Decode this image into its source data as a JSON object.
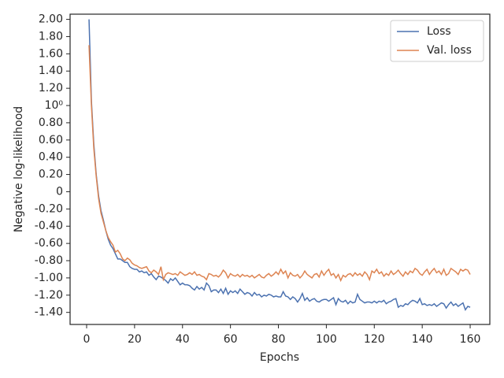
{
  "chart_data": {
    "type": "line",
    "xlabel": "Epochs",
    "ylabel": "Negative log-likelihood",
    "x": [
      1,
      2,
      3,
      4,
      5,
      6,
      7,
      8,
      9,
      10,
      11,
      12,
      13,
      14,
      15,
      16,
      17,
      18,
      19,
      20,
      21,
      22,
      23,
      24,
      25,
      26,
      27,
      28,
      29,
      30,
      31,
      32,
      33,
      34,
      35,
      36,
      37,
      38,
      39,
      40,
      41,
      42,
      43,
      44,
      45,
      46,
      47,
      48,
      49,
      50,
      51,
      52,
      53,
      54,
      55,
      56,
      57,
      58,
      59,
      60,
      61,
      62,
      63,
      64,
      65,
      66,
      67,
      68,
      69,
      70,
      71,
      72,
      73,
      74,
      75,
      76,
      77,
      78,
      79,
      80,
      81,
      82,
      83,
      84,
      85,
      86,
      87,
      88,
      89,
      90,
      91,
      92,
      93,
      94,
      95,
      96,
      97,
      98,
      99,
      100,
      101,
      102,
      103,
      104,
      105,
      106,
      107,
      108,
      109,
      110,
      111,
      112,
      113,
      114,
      115,
      116,
      117,
      118,
      119,
      120,
      121,
      122,
      123,
      124,
      125,
      126,
      127,
      128,
      129,
      130,
      131,
      132,
      133,
      134,
      135,
      136,
      137,
      138,
      139,
      140,
      141,
      142,
      143,
      144,
      145,
      146,
      147,
      148,
      149,
      150,
      151,
      152,
      153,
      154,
      155,
      156,
      157,
      158,
      159,
      160
    ],
    "series": [
      {
        "name": "Loss",
        "color": "#4c72b0",
        "values": [
          2.0,
          1.05,
          0.55,
          0.2,
          -0.05,
          -0.22,
          -0.33,
          -0.45,
          -0.55,
          -0.62,
          -0.66,
          -0.72,
          -0.78,
          -0.78,
          -0.8,
          -0.82,
          -0.82,
          -0.87,
          -0.89,
          -0.9,
          -0.9,
          -0.93,
          -0.92,
          -0.94,
          -0.93,
          -0.97,
          -0.95,
          -0.99,
          -1.02,
          -0.98,
          -0.99,
          -1.01,
          -1.03,
          -1.06,
          -1.01,
          -1.03,
          -1.0,
          -1.04,
          -1.08,
          -1.06,
          -1.08,
          -1.08,
          -1.09,
          -1.12,
          -1.14,
          -1.1,
          -1.13,
          -1.11,
          -1.14,
          -1.06,
          -1.09,
          -1.16,
          -1.14,
          -1.14,
          -1.17,
          -1.13,
          -1.18,
          -1.12,
          -1.19,
          -1.15,
          -1.17,
          -1.15,
          -1.18,
          -1.13,
          -1.16,
          -1.19,
          -1.17,
          -1.18,
          -1.21,
          -1.17,
          -1.2,
          -1.19,
          -1.22,
          -1.2,
          -1.21,
          -1.19,
          -1.2,
          -1.22,
          -1.21,
          -1.22,
          -1.22,
          -1.16,
          -1.21,
          -1.22,
          -1.25,
          -1.22,
          -1.24,
          -1.28,
          -1.24,
          -1.18,
          -1.26,
          -1.23,
          -1.27,
          -1.25,
          -1.24,
          -1.27,
          -1.28,
          -1.26,
          -1.25,
          -1.25,
          -1.27,
          -1.25,
          -1.23,
          -1.31,
          -1.24,
          -1.27,
          -1.28,
          -1.26,
          -1.3,
          -1.27,
          -1.29,
          -1.28,
          -1.19,
          -1.25,
          -1.27,
          -1.29,
          -1.28,
          -1.28,
          -1.29,
          -1.27,
          -1.29,
          -1.27,
          -1.28,
          -1.26,
          -1.3,
          -1.28,
          -1.27,
          -1.25,
          -1.24,
          -1.34,
          -1.32,
          -1.33,
          -1.3,
          -1.31,
          -1.28,
          -1.26,
          -1.27,
          -1.29,
          -1.24,
          -1.31,
          -1.3,
          -1.32,
          -1.31,
          -1.32,
          -1.3,
          -1.33,
          -1.31,
          -1.29,
          -1.3,
          -1.35,
          -1.31,
          -1.28,
          -1.32,
          -1.3,
          -1.33,
          -1.31,
          -1.29,
          -1.37,
          -1.33,
          -1.34
        ]
      },
      {
        "name": "Val. loss",
        "color": "#dd8452",
        "values": [
          1.7,
          1.0,
          0.5,
          0.18,
          -0.08,
          -0.25,
          -0.35,
          -0.45,
          -0.53,
          -0.58,
          -0.62,
          -0.7,
          -0.68,
          -0.72,
          -0.78,
          -0.8,
          -0.77,
          -0.79,
          -0.83,
          -0.85,
          -0.86,
          -0.88,
          -0.89,
          -0.88,
          -0.87,
          -0.92,
          -0.94,
          -0.91,
          -0.93,
          -0.96,
          -0.87,
          -1.02,
          -0.96,
          -0.94,
          -0.95,
          -0.96,
          -0.95,
          -0.97,
          -0.93,
          -0.95,
          -0.97,
          -0.96,
          -0.94,
          -0.96,
          -0.93,
          -0.97,
          -0.96,
          -0.98,
          -0.99,
          -1.02,
          -0.95,
          -0.96,
          -0.98,
          -0.97,
          -0.99,
          -0.96,
          -0.91,
          -0.94,
          -1.0,
          -0.95,
          -0.97,
          -0.98,
          -0.96,
          -0.99,
          -0.96,
          -0.98,
          -0.97,
          -0.99,
          -0.97,
          -1.0,
          -0.98,
          -0.96,
          -0.99,
          -1.0,
          -0.97,
          -0.95,
          -0.98,
          -0.96,
          -0.93,
          -0.96,
          -0.9,
          -0.95,
          -0.92,
          -1.0,
          -0.94,
          -0.97,
          -0.98,
          -0.96,
          -1.0,
          -0.97,
          -0.92,
          -0.96,
          -0.98,
          -1.0,
          -0.96,
          -0.95,
          -0.99,
          -0.92,
          -0.97,
          -0.93,
          -0.9,
          -0.97,
          -0.95,
          -1.0,
          -0.96,
          -1.03,
          -0.97,
          -0.99,
          -0.96,
          -0.95,
          -0.98,
          -0.94,
          -0.97,
          -0.95,
          -0.98,
          -0.93,
          -0.96,
          -1.02,
          -0.92,
          -0.94,
          -0.9,
          -0.95,
          -0.93,
          -0.98,
          -0.95,
          -0.97,
          -0.92,
          -0.96,
          -0.94,
          -0.91,
          -0.95,
          -0.98,
          -0.93,
          -0.96,
          -0.92,
          -0.94,
          -0.89,
          -0.91,
          -0.95,
          -0.97,
          -0.93,
          -0.9,
          -0.96,
          -0.92,
          -0.89,
          -0.94,
          -0.92,
          -0.96,
          -0.9,
          -0.97,
          -0.95,
          -0.89,
          -0.91,
          -0.93,
          -0.96,
          -0.9,
          -0.92,
          -0.9,
          -0.91,
          -0.96
        ]
      }
    ],
    "xlim": [
      -6.9,
      168.2
    ],
    "xticks": [
      0,
      20,
      40,
      60,
      80,
      100,
      120,
      140,
      160
    ],
    "ylim": [
      -1.54,
      2.06
    ],
    "yticks": [
      {
        "value": 2,
        "label": "2.00"
      },
      {
        "value": 1.8,
        "label": "1.80"
      },
      {
        "value": 1.6,
        "label": "1.60"
      },
      {
        "value": 1.4,
        "label": "1.40"
      },
      {
        "value": 1.2,
        "label": "1.20"
      },
      {
        "value": 1,
        "label": "10⁰"
      },
      {
        "value": 0.8,
        "label": "0.80"
      },
      {
        "value": 0.6,
        "label": "0.60"
      },
      {
        "value": 0.4,
        "label": "0.40"
      },
      {
        "value": 0.2,
        "label": "0.20"
      },
      0,
      {
        "value": -0.2,
        "label": "-0.20"
      },
      {
        "value": -0.4,
        "label": "-0.40"
      },
      {
        "value": -0.6,
        "label": "-0.60"
      },
      {
        "value": -0.8,
        "label": "-0.80"
      },
      {
        "value": -1,
        "label": "-1.00"
      },
      {
        "value": -1.2,
        "label": "-1.20"
      },
      {
        "value": -1.4,
        "label": "-1.40"
      }
    ],
    "legend": "upper right",
    "grid": false
  }
}
